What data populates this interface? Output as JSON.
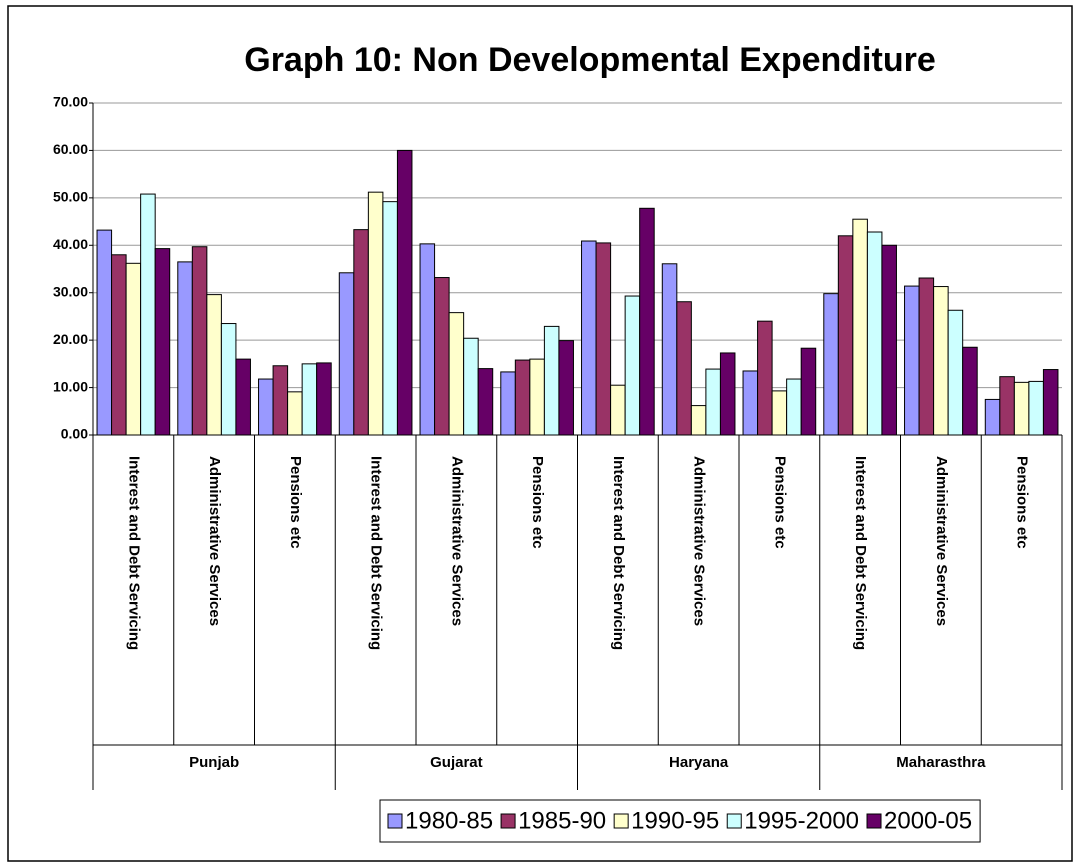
{
  "chart_data": {
    "type": "bar",
    "title": "Graph 10: Non Developmental Expenditure",
    "groups": [
      "Punjab",
      "Gujarat",
      "Haryana",
      "Maharasthra"
    ],
    "categories": [
      "Interest and Debt Servicing",
      "Administrative Services",
      "Pensions etc",
      "Interest and Debt Servicing",
      "Administrative Services",
      "Pensions etc",
      "Interest and Debt Servicing",
      "Administrative Services",
      "Pensions etc",
      "Interest and Debt Servicing",
      "Administrative Services",
      "Pensions etc"
    ],
    "series": [
      {
        "name": "1980-85",
        "color": "#9999ff",
        "values": [
          43.2,
          36.5,
          11.8,
          34.2,
          40.3,
          13.3,
          40.9,
          36.1,
          13.5,
          29.8,
          31.4,
          7.5
        ]
      },
      {
        "name": "1985-90",
        "color": "#993366",
        "values": [
          38.0,
          39.7,
          14.6,
          43.3,
          33.2,
          15.8,
          40.5,
          28.1,
          24.0,
          42.0,
          33.1,
          12.3
        ]
      },
      {
        "name": "1990-95",
        "color": "#ffffcc",
        "values": [
          36.2,
          29.6,
          9.1,
          51.2,
          25.8,
          16.0,
          10.5,
          6.2,
          9.3,
          45.5,
          31.3,
          11.1
        ]
      },
      {
        "name": "1995-2000",
        "color": "#ccffff",
        "values": [
          50.8,
          23.5,
          15.0,
          49.2,
          20.4,
          22.9,
          29.3,
          13.9,
          11.8,
          42.8,
          26.3,
          11.3
        ]
      },
      {
        "name": "2000-05",
        "color": "#660066",
        "values": [
          39.3,
          16.0,
          15.2,
          60.0,
          14.0,
          19.9,
          47.8,
          17.3,
          18.3,
          40.0,
          18.5,
          13.8
        ]
      }
    ],
    "ylim": [
      0,
      70
    ],
    "yticks": [
      {
        "value": 0,
        "label": "0.00"
      },
      {
        "value": 10,
        "label": "10.00"
      },
      {
        "value": 20,
        "label": "20.00"
      },
      {
        "value": 30,
        "label": "30.00"
      },
      {
        "value": 40,
        "label": "40.00"
      },
      {
        "value": 50,
        "label": "50.00"
      },
      {
        "value": 60,
        "label": "60.00"
      },
      {
        "value": 70,
        "label": "70.00"
      }
    ],
    "grid": true,
    "legend": "bottom"
  }
}
